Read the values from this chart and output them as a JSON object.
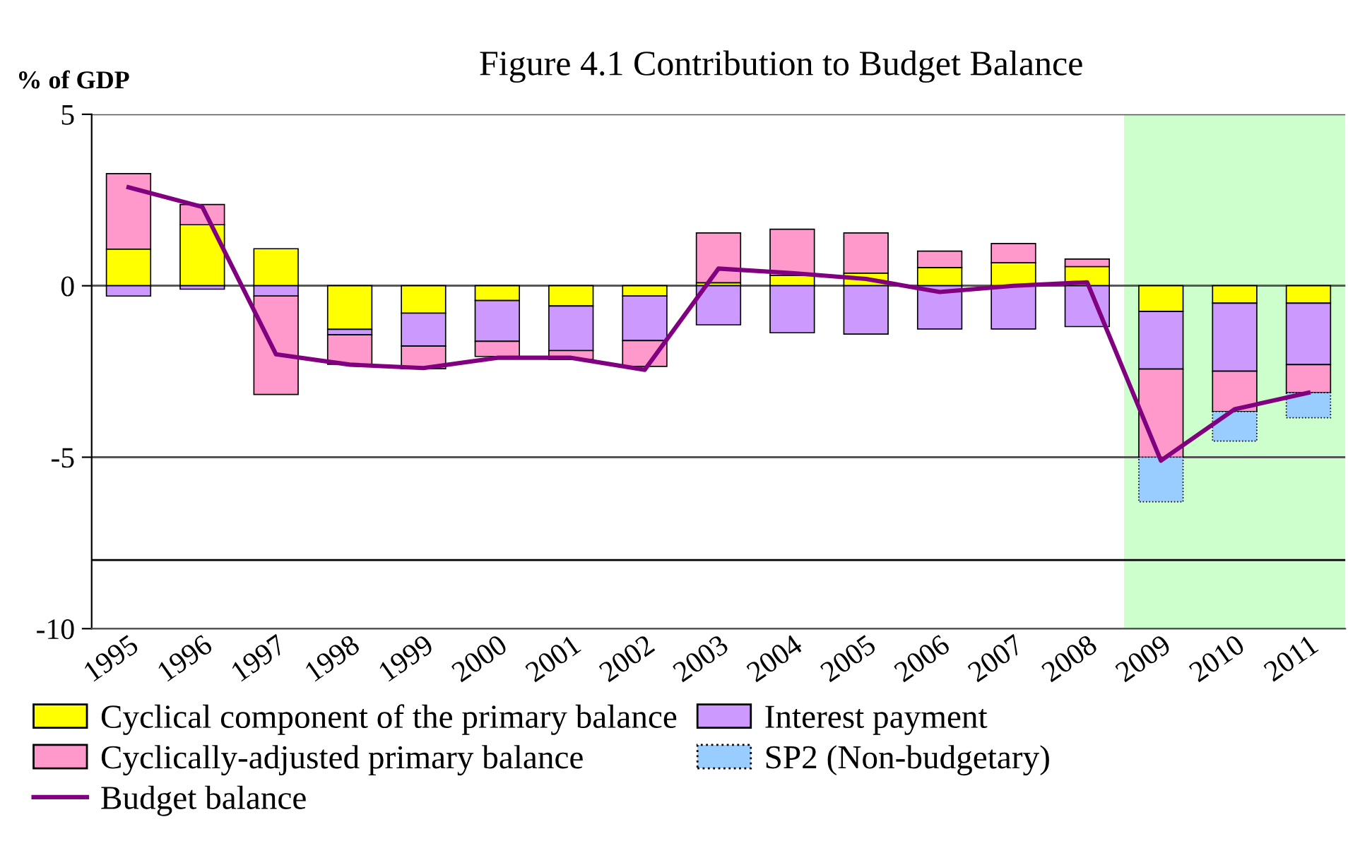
{
  "chart_data": {
    "type": "bar",
    "stacked": true,
    "title": "Figure 4.1 Contribution to Budget Balance",
    "ylabel": "% of GDP",
    "categories": [
      "1995",
      "1996",
      "1997",
      "1998",
      "1999",
      "2000",
      "2001",
      "2002",
      "2003",
      "2004",
      "2005",
      "2006",
      "2007",
      "2008",
      "2009",
      "2010",
      "2011"
    ],
    "series": [
      {
        "name": "Cyclical component of the primary balance",
        "color": "#ffff00",
        "values": [
          1.07,
          1.78,
          1.08,
          -1.27,
          -0.8,
          -0.43,
          -0.59,
          -0.3,
          0.09,
          0.3,
          0.37,
          0.53,
          0.67,
          0.56,
          -0.75,
          -0.51,
          -0.51
        ]
      },
      {
        "name": "Interest payment",
        "color": "#cc99ff",
        "values": [
          -0.3,
          -0.1,
          -0.3,
          -0.16,
          -0.96,
          -1.19,
          -1.3,
          -1.3,
          -1.14,
          -1.37,
          -1.41,
          -1.26,
          -1.26,
          -1.19,
          -1.68,
          -1.98,
          -1.79
        ]
      },
      {
        "name": "Cyclically-adjusted primary balance",
        "color": "#ff99cc",
        "values": [
          2.2,
          0.59,
          -2.87,
          -0.86,
          -0.66,
          -0.44,
          -0.26,
          -0.75,
          1.45,
          1.35,
          1.17,
          0.48,
          0.56,
          0.22,
          -2.57,
          -1.18,
          -0.82
        ]
      },
      {
        "name": "SP2 (Non-budgetary)",
        "color": "#99ccff",
        "values": [
          null,
          null,
          null,
          null,
          null,
          null,
          null,
          null,
          null,
          null,
          null,
          null,
          null,
          null,
          -1.3,
          -0.86,
          -0.73
        ]
      },
      {
        "name": "Budget balance",
        "type": "line",
        "color": "#800080",
        "values": [
          2.87,
          2.3,
          -2.0,
          -2.3,
          -2.4,
          -2.1,
          -2.1,
          -2.45,
          0.5,
          0.37,
          0.2,
          -0.18,
          0.0,
          0.1,
          -5.1,
          -3.6,
          -3.12
        ]
      }
    ],
    "ylim": [
      -10,
      5
    ],
    "yticks": [
      -10,
      -5,
      0,
      5
    ],
    "grid": "y",
    "legend": "bottom",
    "marker": "none",
    "line_style": "solid",
    "ref_lines": [
      {
        "axis": "y",
        "value": -8,
        "color": "#000000"
      }
    ],
    "bands": [
      {
        "axis": "x",
        "from": "2009",
        "to": "2011",
        "color": "#ccffcc"
      }
    ]
  }
}
